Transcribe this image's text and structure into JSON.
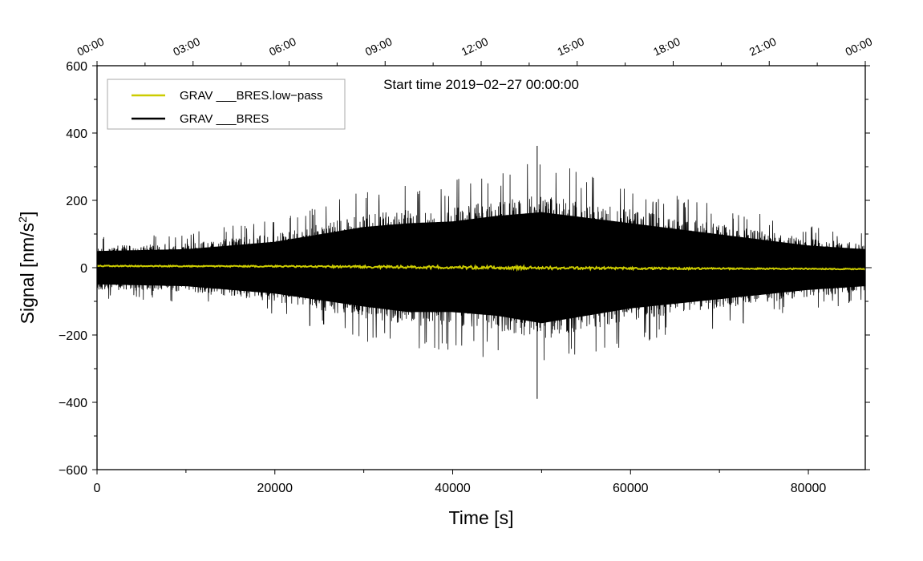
{
  "chart_data": {
    "type": "line",
    "annotation": "Start time 2019−02−27 00:00:00",
    "xlabel": "Time [s]",
    "ylabel_main": "Signal [nm/s",
    "ylabel_sup": "2",
    "ylabel_end": "]",
    "xlim": [
      0,
      86400
    ],
    "ylim": [
      -600,
      600
    ],
    "x_ticks": [
      0,
      20000,
      40000,
      60000,
      80000
    ],
    "x_tick_labels": [
      "0",
      "20000",
      "40000",
      "60000",
      "80000"
    ],
    "y_ticks": [
      600,
      400,
      200,
      0,
      -200,
      -400,
      -600
    ],
    "y_tick_labels": [
      "600",
      "400",
      "200",
      "0",
      "−200",
      "−400",
      "−600"
    ],
    "top_axis_ticks_s": [
      0,
      10800,
      21600,
      32400,
      43200,
      54000,
      64800,
      75600,
      86400
    ],
    "top_axis_labels": [
      "00:00",
      "03:00",
      "06:00",
      "09:00",
      "12:00",
      "15:00",
      "18:00",
      "21:00",
      "00:00"
    ],
    "legend": {
      "placement": "top-left",
      "entries": [
        {
          "label": "GRAV ___BRES.low−pass",
          "color": "#cccc00"
        },
        {
          "label": "GRAV ___BRES",
          "color": "#000000"
        }
      ]
    },
    "series": [
      {
        "name": "GRAV ___BRES",
        "color": "#000000",
        "envelope_x": [
          0,
          10000,
          20000,
          30000,
          35000,
          40000,
          45000,
          50000,
          55000,
          60000,
          70000,
          80000,
          86400
        ],
        "envelope_upper": [
          90,
          100,
          140,
          220,
          240,
          250,
          280,
          300,
          270,
          240,
          180,
          120,
          100
        ],
        "envelope_lower": [
          -90,
          -100,
          -140,
          -210,
          -240,
          -240,
          -260,
          -300,
          -260,
          -220,
          -170,
          -120,
          -100
        ],
        "peak_max": {
          "x": 49500,
          "y": 362
        },
        "peak_min": {
          "x": 49500,
          "y": -390
        }
      },
      {
        "name": "GRAV ___BRES.low−pass",
        "color": "#cccc00",
        "x": [
          0,
          20000,
          40000,
          60000,
          86400
        ],
        "y": [
          5,
          4,
          1,
          -2,
          -4
        ]
      }
    ]
  }
}
